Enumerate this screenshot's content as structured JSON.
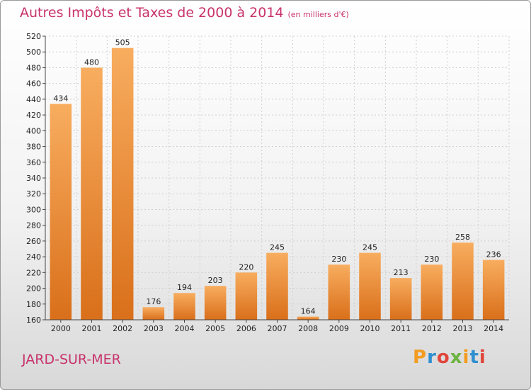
{
  "chart_data": {
    "type": "bar",
    "title": "Autres Impôts et Taxes de 2000 à 2014",
    "subtitle": "(en milliers d'€)",
    "categories": [
      "2000",
      "2001",
      "2002",
      "2003",
      "2004",
      "2005",
      "2006",
      "2007",
      "2008",
      "2009",
      "2010",
      "2011",
      "2012",
      "2013",
      "2014"
    ],
    "values": [
      434,
      480,
      505,
      176,
      194,
      203,
      220,
      245,
      164,
      230,
      245,
      213,
      230,
      258,
      236
    ],
    "ylim": [
      160,
      520
    ],
    "yticks": [
      160,
      180,
      200,
      220,
      240,
      260,
      280,
      300,
      320,
      340,
      360,
      380,
      400,
      420,
      440,
      460,
      480,
      500,
      520
    ],
    "grid": true
  },
  "location": "JARD-SUR-MER",
  "brand": {
    "letters": [
      "P",
      "r",
      "o",
      "x",
      "i",
      "t",
      "i"
    ],
    "colors": [
      "#f39c1f",
      "#2f8fd0",
      "#e0463c",
      "#6cb33f",
      "#f39c1f",
      "#2f8fd0",
      "#e0463c"
    ]
  },
  "colors": {
    "bar_light": "#f8ad5f",
    "bar_dark": "#d96f1a",
    "title": "#c8336b"
  }
}
